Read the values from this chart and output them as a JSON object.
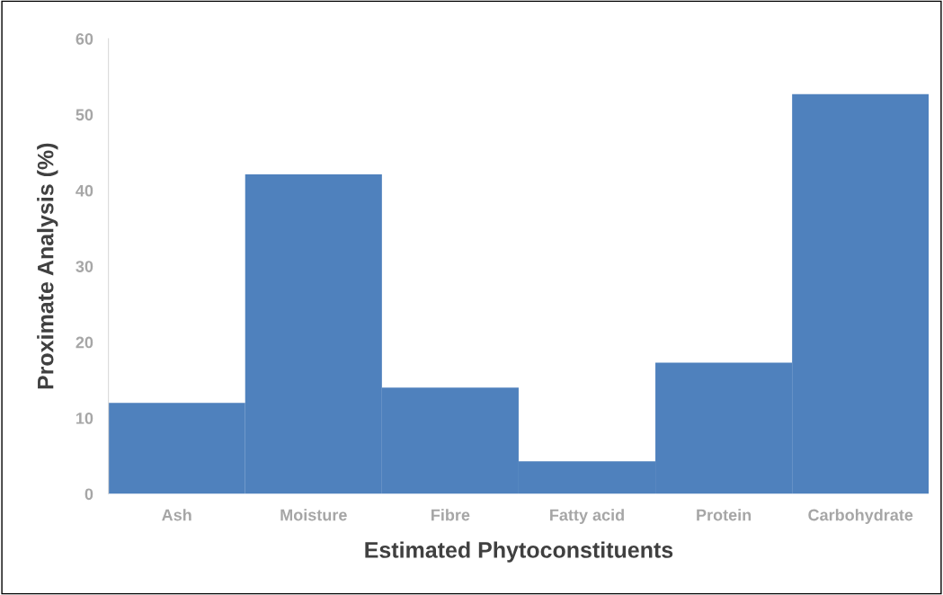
{
  "chart_data": {
    "type": "bar",
    "xlabel": "Estimated Phytoconstituents",
    "ylabel": "Proximate Analysis (%)",
    "categories": [
      "Ash",
      "Moisture",
      "Fibre",
      "Fatty acid",
      "Protein",
      "Carbohydrate"
    ],
    "values": [
      12.0,
      42.1,
      14.0,
      4.3,
      17.3,
      52.7
    ],
    "color": "#4f81bd",
    "ylim": [
      0,
      60
    ],
    "yticks": [
      0,
      10,
      20,
      30,
      40,
      50,
      60
    ],
    "grid": false
  }
}
